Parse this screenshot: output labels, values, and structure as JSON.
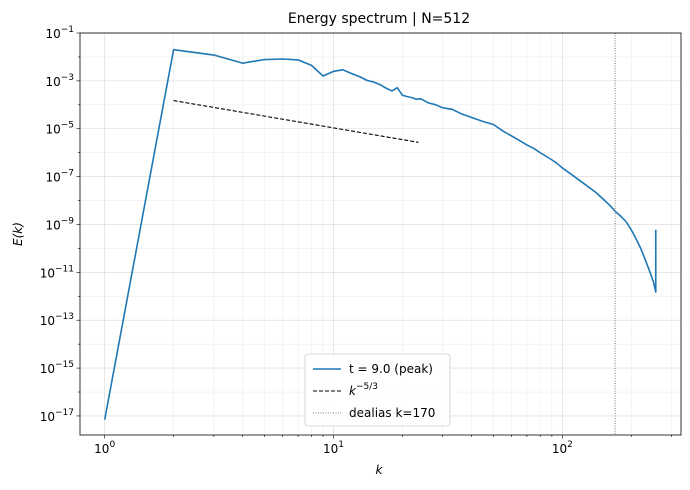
{
  "chart_data": {
    "type": "line",
    "title": "Energy spectrum  |  N=512",
    "xlabel": "k",
    "ylabel": "E(k)",
    "xscale": "log",
    "yscale": "log",
    "xlim": [
      0.78,
      330
    ],
    "ylim": [
      1.6e-18,
      0.1
    ],
    "grid": true,
    "legend_placement": "lower-center",
    "x_ticks": [
      {
        "value": 1,
        "base": "10",
        "exp": "0"
      },
      {
        "value": 10,
        "base": "10",
        "exp": "1"
      },
      {
        "value": 100,
        "base": "10",
        "exp": "2"
      }
    ],
    "y_ticks": [
      {
        "value": 0.1,
        "base": "10",
        "exp": "−1"
      },
      {
        "value": 0.001,
        "base": "10",
        "exp": "−3"
      },
      {
        "value": 1e-05,
        "base": "10",
        "exp": "−5"
      },
      {
        "value": 1e-07,
        "base": "10",
        "exp": "−7"
      },
      {
        "value": 1e-09,
        "base": "10",
        "exp": "−9"
      },
      {
        "value": 1e-11,
        "base": "10",
        "exp": "−11"
      },
      {
        "value": 1e-13,
        "base": "10",
        "exp": "−13"
      },
      {
        "value": 1e-15,
        "base": "10",
        "exp": "−15"
      },
      {
        "value": 1e-17,
        "base": "10",
        "exp": "−17"
      }
    ],
    "series": [
      {
        "name": "t = 9.0 (peak)",
        "style": "solid",
        "color": "#1f77b4",
        "x": [
          1,
          2,
          3,
          4,
          5,
          6,
          7,
          8,
          9,
          10,
          11,
          12,
          13,
          14,
          15,
          16,
          17,
          18,
          19,
          20,
          21,
          22,
          23,
          24,
          26,
          28,
          30,
          33,
          36,
          40,
          45,
          50,
          55,
          60,
          65,
          70,
          75,
          80,
          85,
          90,
          95,
          100,
          110,
          120,
          130,
          140,
          150,
          160,
          170,
          180,
          190,
          200,
          210,
          220,
          230,
          240,
          250,
          256,
          256
        ],
        "y": [
          7e-18,
          0.02,
          0.012,
          0.0055,
          0.0078,
          0.0082,
          0.0075,
          0.0045,
          0.0016,
          0.0025,
          0.0029,
          0.002,
          0.0015,
          0.00105,
          0.00089,
          0.00069,
          0.00049,
          0.00038,
          0.00052,
          0.00025,
          0.00022,
          0.0002,
          0.00017,
          0.00018,
          0.00012,
          0.0001,
          7.5e-05,
          6.5e-05,
          4.3e-05,
          3e-05,
          2e-05,
          1.5e-05,
          8e-06,
          5e-06,
          3.2e-06,
          2.1e-06,
          1.5e-06,
          1e-06,
          7e-07,
          5e-07,
          3.5e-07,
          2.3e-07,
          1.2e-07,
          6.5e-08,
          3.7e-08,
          2.2e-08,
          1.2e-08,
          6.8e-09,
          3.6e-09,
          2.2e-09,
          1.3e-09,
          6e-10,
          2.5e-10,
          1e-10,
          3.5e-11,
          1.2e-11,
          4e-12,
          1.5e-12,
          6e-10
        ]
      },
      {
        "name": "k^−5/3",
        "label_base": "k",
        "label_sup": "−5/3",
        "style": "dashed",
        "color": "#000000",
        "x": [
          2,
          23.5
        ],
        "y": [
          0.00015,
          2.7e-06
        ]
      },
      {
        "name": "dealias k=170",
        "style": "dotted",
        "color": "#555555",
        "vline_x": 170
      }
    ]
  }
}
